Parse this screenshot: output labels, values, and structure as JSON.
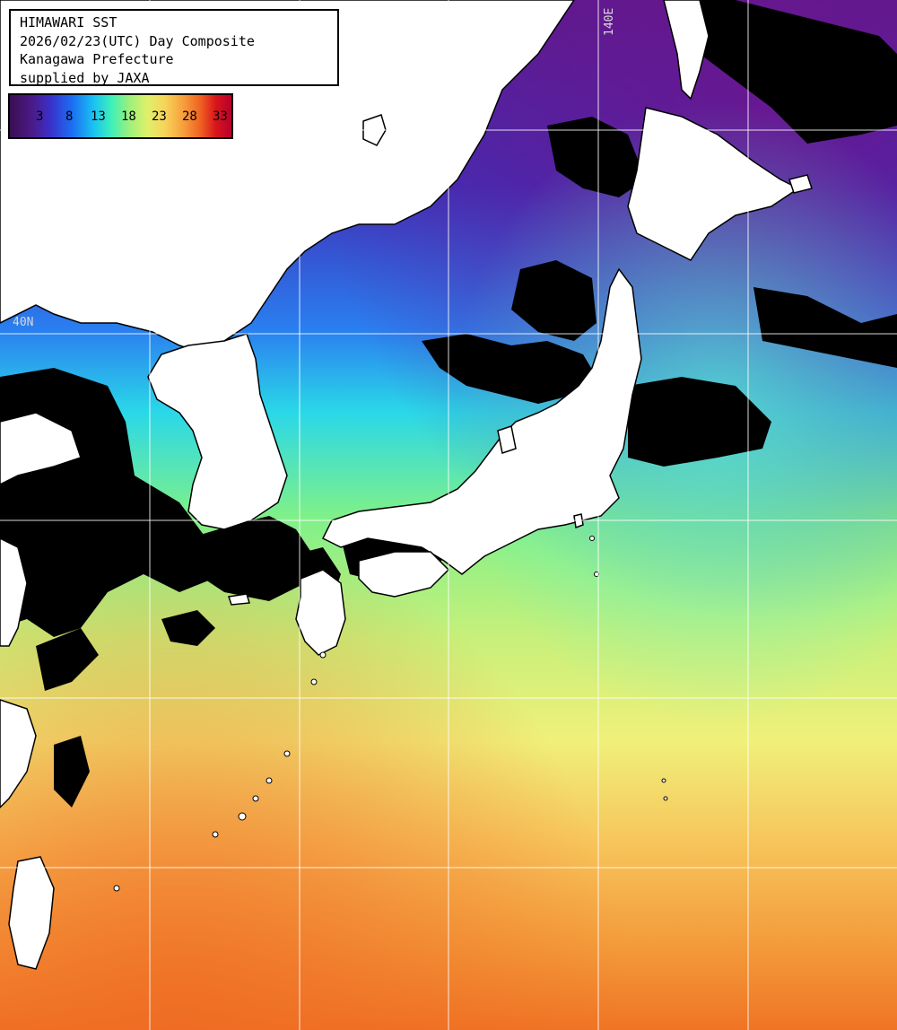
{
  "title": {
    "line1": "HIMAWARI SST",
    "line2": "2026/02/23(UTC) Day Composite",
    "line3": "Kanagawa Prefecture",
    "line4": "supplied by JAXA"
  },
  "legend": {
    "ticks": [
      "3",
      "8",
      "13",
      "18",
      "23",
      "28",
      "33"
    ],
    "colors": [
      "#3a0f52",
      "#3b2fc8",
      "#19c4f2",
      "#9df07a",
      "#f7d45a",
      "#ef6222",
      "#b8002c"
    ]
  },
  "grid": {
    "lat_label": "40N",
    "lon_label": "140E"
  },
  "colors": {
    "land": "#ffffff",
    "no_data": "#000000",
    "gridline": "#ffffff",
    "cold_sea": "#4b1a86",
    "warm_sea": "#f28a2e"
  }
}
